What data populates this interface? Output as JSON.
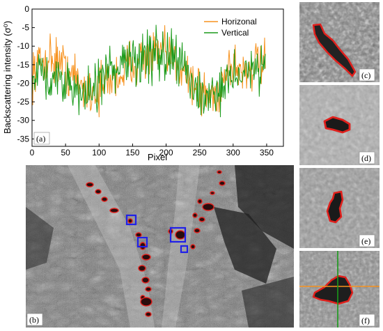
{
  "chart_data": {
    "type": "line",
    "panel_label": "(a)",
    "xlabel": "Pixel",
    "ylabel": "Backscattering intensity (σ⁰)",
    "xlim": [
      0,
      375
    ],
    "ylim": [
      -37,
      0
    ],
    "x_ticks": [
      0,
      50,
      100,
      150,
      200,
      250,
      300,
      350
    ],
    "y_ticks": [
      0,
      -5,
      -10,
      -15,
      -20,
      -25,
      -30,
      -35
    ],
    "legend_position": "top-right",
    "series": [
      {
        "name": "Horizonal",
        "color": "#f7921e",
        "anchors": [
          [
            0,
            -17
          ],
          [
            10,
            -15
          ],
          [
            25,
            -13
          ],
          [
            40,
            -14
          ],
          [
            50,
            -16
          ],
          [
            65,
            -19
          ],
          [
            75,
            -21
          ],
          [
            90,
            -22
          ],
          [
            100,
            -22
          ],
          [
            105,
            -21
          ],
          [
            115,
            -19
          ],
          [
            130,
            -18
          ],
          [
            150,
            -14
          ],
          [
            170,
            -13
          ],
          [
            190,
            -12
          ],
          [
            210,
            -14
          ],
          [
            225,
            -15
          ],
          [
            240,
            -20
          ],
          [
            255,
            -23
          ],
          [
            270,
            -24
          ],
          [
            280,
            -22
          ],
          [
            290,
            -16
          ],
          [
            300,
            -15
          ],
          [
            315,
            -17
          ],
          [
            335,
            -15
          ],
          [
            348,
            -15
          ]
        ]
      },
      {
        "name": "Vertical",
        "color": "#1a9a1a",
        "anchors": [
          [
            0,
            -18
          ],
          [
            10,
            -17
          ],
          [
            25,
            -17
          ],
          [
            40,
            -18
          ],
          [
            50,
            -21
          ],
          [
            65,
            -22
          ],
          [
            75,
            -23
          ],
          [
            90,
            -22
          ],
          [
            100,
            -22
          ],
          [
            105,
            -20
          ],
          [
            115,
            -17
          ],
          [
            130,
            -16
          ],
          [
            150,
            -14
          ],
          [
            170,
            -13
          ],
          [
            185,
            -12
          ],
          [
            200,
            -13
          ],
          [
            215,
            -14
          ],
          [
            230,
            -16
          ],
          [
            240,
            -21
          ],
          [
            255,
            -23
          ],
          [
            270,
            -23
          ],
          [
            280,
            -21
          ],
          [
            290,
            -18
          ],
          [
            300,
            -18
          ],
          [
            315,
            -17
          ],
          [
            335,
            -16
          ],
          [
            348,
            -16
          ]
        ]
      }
    ]
  },
  "panels": {
    "b": "(b)",
    "c": "(c)",
    "d": "(d)",
    "e": "(e)",
    "f": "(f)"
  },
  "colors": {
    "outline": "#e0201c",
    "box": "#2020e8",
    "cross_h": "#f7921e",
    "cross_v": "#1a9a1a"
  }
}
